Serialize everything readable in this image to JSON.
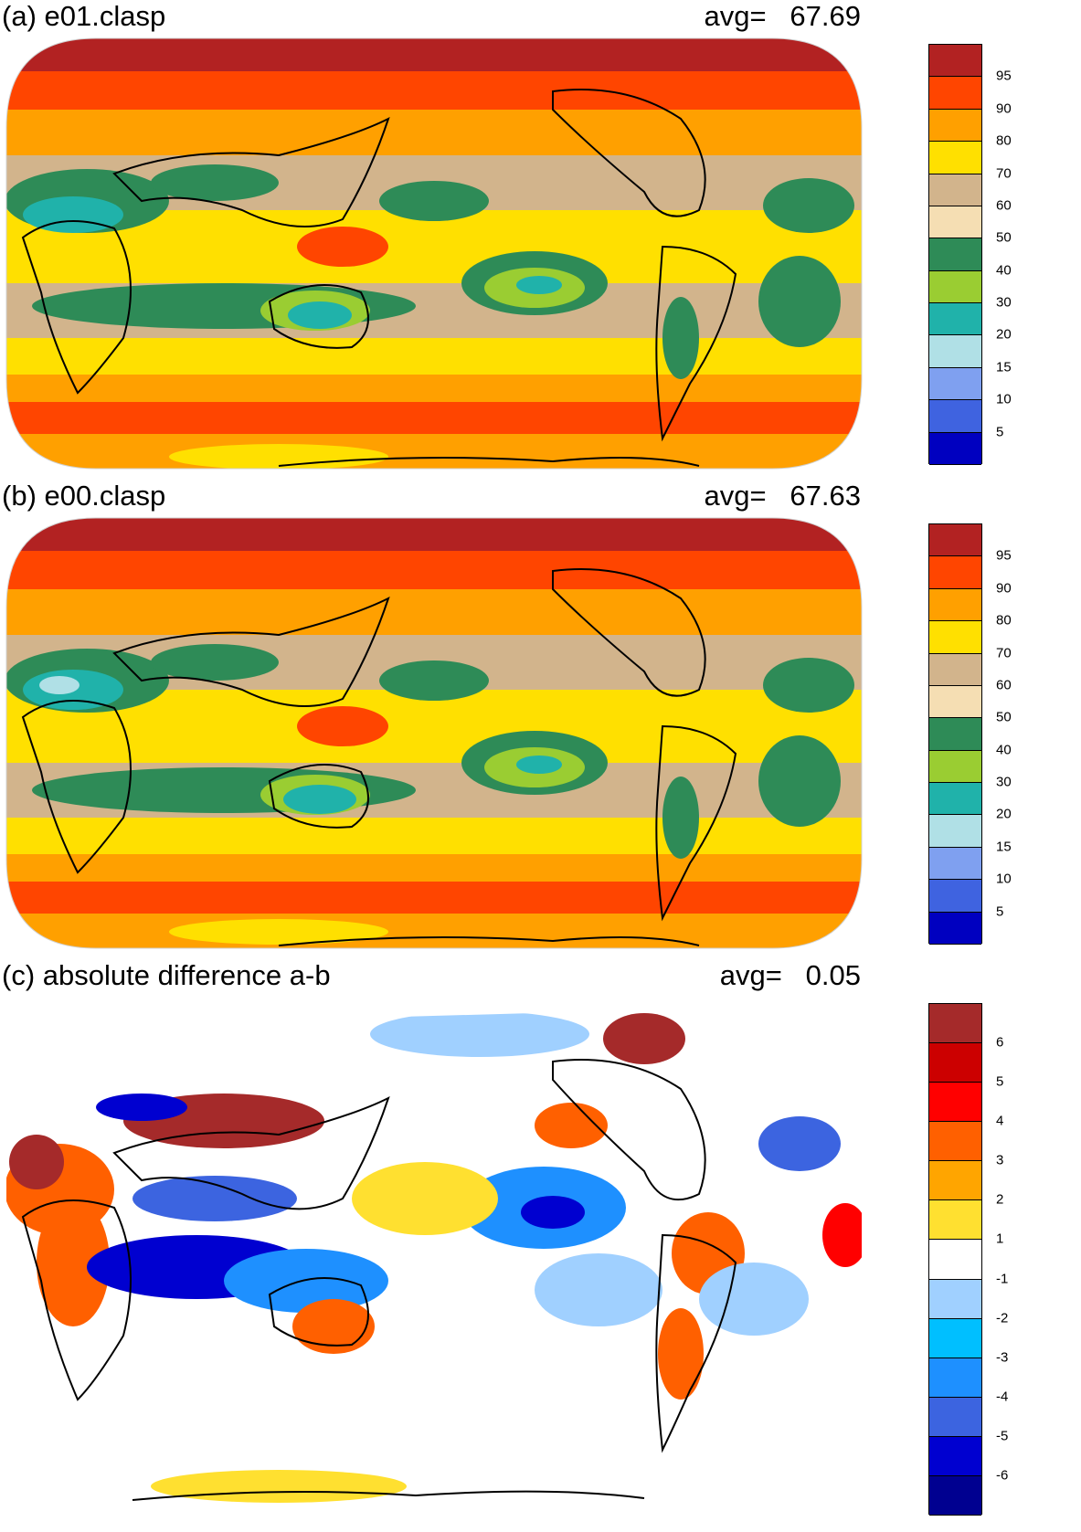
{
  "colors": {
    "main": [
      "#0000c0",
      "#3f63e0",
      "#7fa0f0",
      "#b0e0e6",
      "#20b2aa",
      "#9acd32",
      "#2e8b57",
      "#f5deb3",
      "#d2b48c",
      "#ffe000",
      "#ffa000",
      "#ff4500",
      "#b22222"
    ],
    "diff": [
      "#000090",
      "#0000d0",
      "#3c64e0",
      "#1e90ff",
      "#00bfff",
      "#a0d0ff",
      "#ffffff",
      "#ffe030",
      "#ffa500",
      "#ff6000",
      "#ff0000",
      "#cc0000",
      "#a52a2a"
    ]
  },
  "panels": [
    {
      "id": "a",
      "title": "(a) e01.clasp",
      "avg_label": "avg=",
      "avg_value": "67.69",
      "palette": "main",
      "colorbar_labels": [
        "95",
        "90",
        "80",
        "70",
        "60",
        "50",
        "40",
        "30",
        "20",
        "15",
        "10",
        "5"
      ]
    },
    {
      "id": "b",
      "title": "(b) e00.clasp",
      "avg_label": "avg=",
      "avg_value": "67.63",
      "palette": "main",
      "colorbar_labels": [
        "95",
        "90",
        "80",
        "70",
        "60",
        "50",
        "40",
        "30",
        "20",
        "15",
        "10",
        "5"
      ]
    },
    {
      "id": "c",
      "title": "(c) absolute difference a-b",
      "avg_label": "avg=",
      "avg_value": "0.05",
      "palette": "diff",
      "colorbar_labels": [
        "6",
        "5",
        "4",
        "3",
        "2",
        "1",
        "-1",
        "-2",
        "-3",
        "-4",
        "-5",
        "-6"
      ]
    }
  ]
}
